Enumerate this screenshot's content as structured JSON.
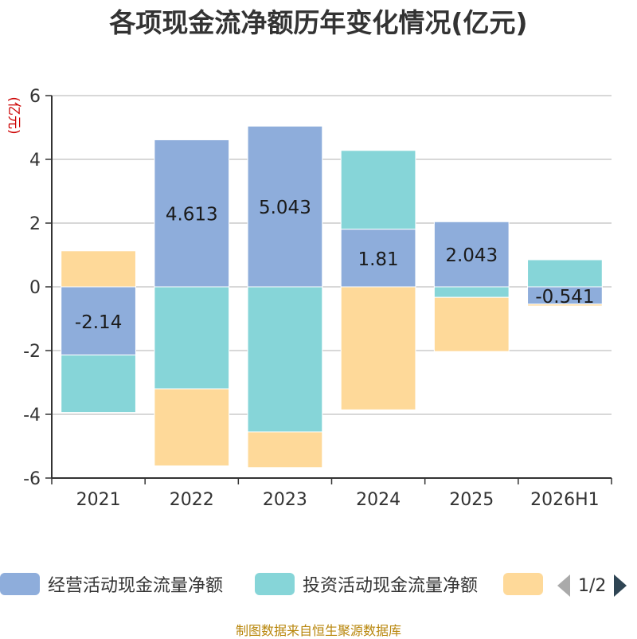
{
  "title": "各项现金流净额历年变化情况(亿元)",
  "source_text": "制图数据来自恒生聚源数据库",
  "pager": {
    "text": "1/2"
  },
  "colors": {
    "operating": "#8eaddb",
    "investing": "#86d5d8",
    "financing": "#fed999",
    "axis": "#333333",
    "grid": "#cccccc",
    "unit": "#cc0000"
  },
  "chart_data": {
    "type": "bar",
    "stacked": true,
    "title": "各项现金流净额历年变化情况(亿元)",
    "ylabel": "(亿元)",
    "xlabel": "",
    "categories": [
      "2021",
      "2022",
      "2023",
      "2024",
      "2025",
      "2026H1"
    ],
    "ylim": [
      -6,
      6
    ],
    "yticks": [
      -6,
      -4,
      -2,
      0,
      2,
      4,
      6
    ],
    "grid": true,
    "legend_position": "bottom",
    "series": [
      {
        "name": "经营活动现金流量净额",
        "values": [
          -2.14,
          4.613,
          5.043,
          1.81,
          2.043,
          -0.541
        ],
        "labels": [
          "-2.14",
          "4.613",
          "5.043",
          "1.81",
          "2.043",
          "-0.541"
        ]
      },
      {
        "name": "投资活动现金流量净额",
        "values": [
          -1.8,
          -3.2,
          -4.55,
          2.47,
          -0.33,
          0.85
        ]
      },
      {
        "name": "",
        "values": [
          1.13,
          -2.42,
          -1.12,
          -3.86,
          -1.7,
          -0.06
        ]
      }
    ]
  }
}
